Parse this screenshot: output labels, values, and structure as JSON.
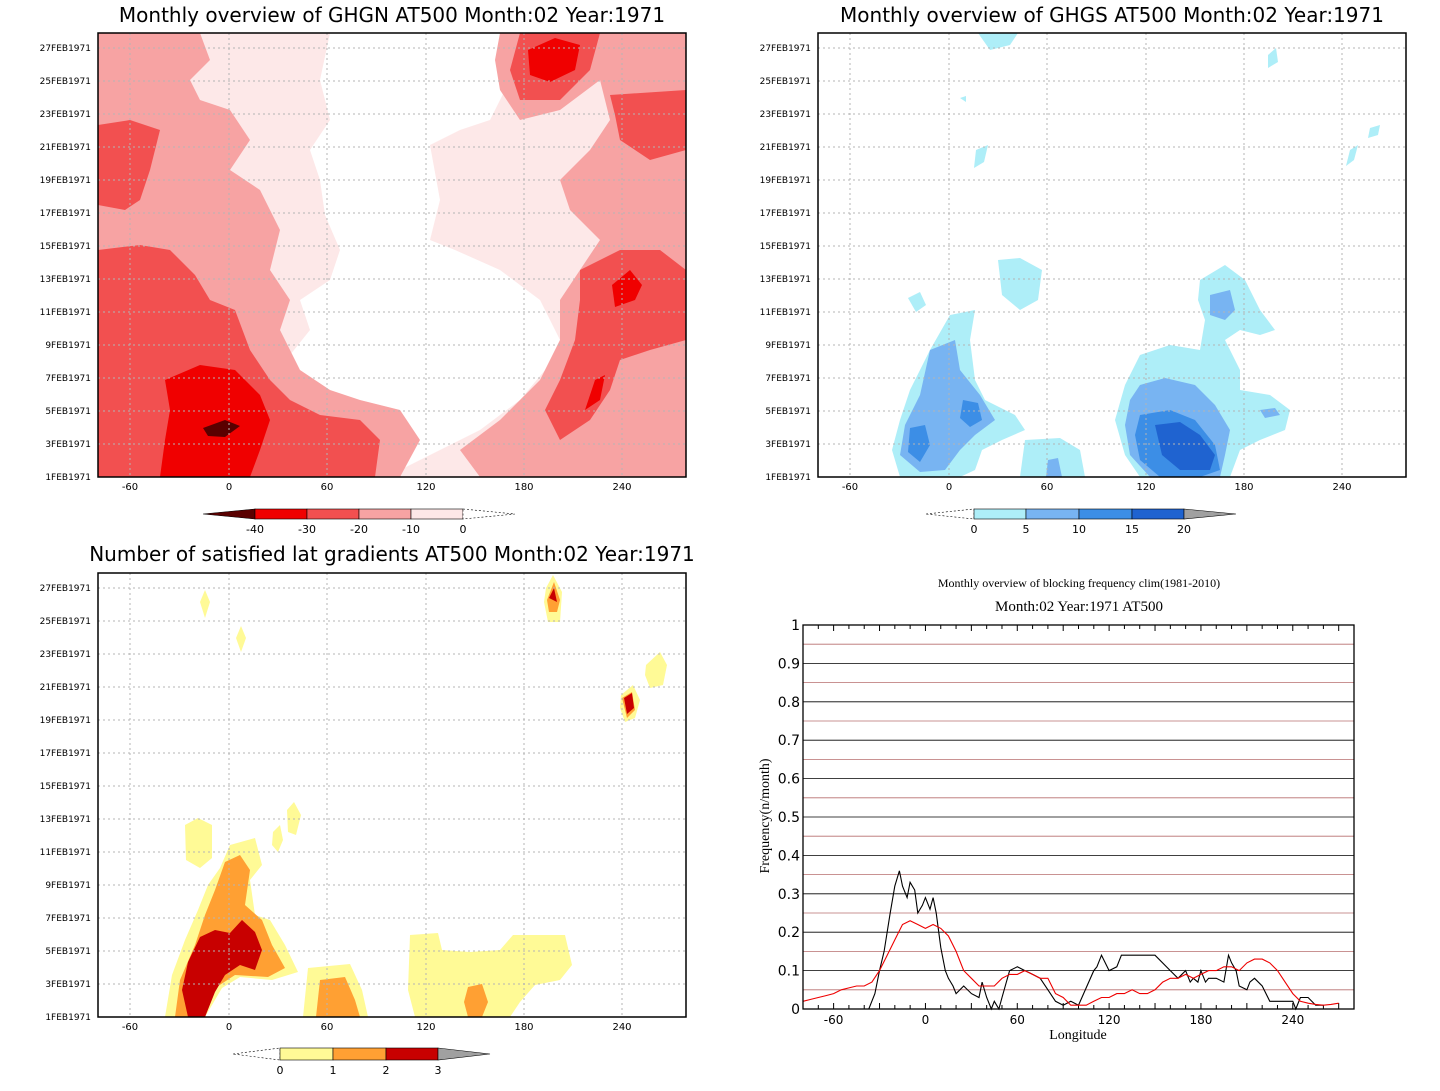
{
  "chart_data": [
    {
      "type": "heatmap",
      "title": "Monthly overview of GHGN AT500 Month:02 Year:1971",
      "x_ticks": [
        "-60",
        "0",
        "60",
        "120",
        "180",
        "240"
      ],
      "y_ticks": [
        "1FEB1971",
        "3FEB1971",
        "5FEB1971",
        "7FEB1971",
        "9FEB1971",
        "11FEB1971",
        "13FEB1971",
        "15FEB1971",
        "17FEB1971",
        "19FEB1971",
        "21FEB1971",
        "23FEB1971",
        "25FEB1971",
        "27FEB1971"
      ],
      "xlim": [
        -80,
        280
      ],
      "ylim": [
        1,
        28
      ],
      "grid": true,
      "colorbar": {
        "labels": [
          "-40",
          "-30",
          "-20",
          "-10",
          "0"
        ],
        "colors": [
          "#5a0000",
          "#f00000",
          "#f25050",
          "#f7a3a3",
          "#fde8e8",
          "#ffffff"
        ],
        "extend": "both"
      }
    },
    {
      "type": "heatmap",
      "title": "Monthly overview of GHGS AT500 Month:02 Year:1971",
      "x_ticks": [
        "-60",
        "0",
        "60",
        "120",
        "180",
        "240"
      ],
      "y_ticks": [
        "1FEB1971",
        "3FEB1971",
        "5FEB1971",
        "7FEB1971",
        "9FEB1971",
        "11FEB1971",
        "13FEB1971",
        "15FEB1971",
        "17FEB1971",
        "19FEB1971",
        "21FEB1971",
        "23FEB1971",
        "25FEB1971",
        "27FEB1971"
      ],
      "xlim": [
        -80,
        280
      ],
      "ylim": [
        1,
        28
      ],
      "grid": true,
      "colorbar": {
        "labels": [
          "0",
          "5",
          "10",
          "15",
          "20"
        ],
        "colors": [
          "#ffffff",
          "#aeeef8",
          "#78b4f2",
          "#3c8ee6",
          "#1f63d0",
          "#a0a0a0"
        ],
        "extend": "both"
      }
    },
    {
      "type": "heatmap",
      "title": "Number of satisfied lat gradients AT500 Month:02 Year:1971",
      "x_ticks": [
        "-60",
        "0",
        "60",
        "120",
        "180",
        "240"
      ],
      "y_ticks": [
        "1FEB1971",
        "3FEB1971",
        "5FEB1971",
        "7FEB1971",
        "9FEB1971",
        "11FEB1971",
        "13FEB1971",
        "15FEB1971",
        "17FEB1971",
        "19FEB1971",
        "21FEB1971",
        "23FEB1971",
        "25FEB1971",
        "27FEB1971"
      ],
      "xlim": [
        -80,
        280
      ],
      "ylim": [
        1,
        28
      ],
      "grid": true,
      "colorbar": {
        "labels": [
          "0",
          "1",
          "2",
          "3"
        ],
        "colors": [
          "#ffffff",
          "#fffa96",
          "#ffa033",
          "#c80000",
          "#a0a0a0"
        ],
        "extend": "both"
      }
    },
    {
      "type": "line",
      "title": "Monthly overview of blocking frequency clim(1981-2010)",
      "subtitle": "Month:02 Year:1971  AT500",
      "xlabel": "Longitude",
      "ylabel": "Frequency(n/month)",
      "xlim": [
        -80,
        280
      ],
      "ylim": [
        0,
        1
      ],
      "x_ticks": [
        "-60",
        "0",
        "60",
        "120",
        "180",
        "240"
      ],
      "y_ticks": [
        "0",
        "0.1",
        "0.2",
        "0.3",
        "0.4",
        "0.5",
        "0.6",
        "0.7",
        "0.8",
        "0.9",
        "1"
      ],
      "grid": true,
      "series": [
        {
          "color": "#000000",
          "x": [
            -40,
            -37,
            -33,
            -30,
            -27,
            -23,
            -20,
            -17,
            -15,
            -12,
            -10,
            -7,
            -5,
            -2,
            0,
            3,
            5,
            7,
            10,
            13,
            15,
            18,
            20,
            25,
            30,
            35,
            37,
            40,
            43,
            45,
            48,
            50,
            55,
            60,
            65,
            70,
            75,
            80,
            85,
            90,
            95,
            100,
            110,
            112,
            115,
            120,
            125,
            128,
            130,
            135,
            140,
            145,
            150,
            160,
            165,
            170,
            173,
            175,
            178,
            180,
            183,
            185,
            190,
            195,
            198,
            200,
            203,
            205,
            210,
            212,
            215,
            220,
            225,
            230,
            235,
            240,
            242,
            245,
            248,
            250,
            255,
            258,
            260
          ],
          "y": [
            0,
            0,
            0.04,
            0.1,
            0.15,
            0.25,
            0.32,
            0.36,
            0.32,
            0.29,
            0.33,
            0.31,
            0.25,
            0.27,
            0.29,
            0.26,
            0.29,
            0.25,
            0.16,
            0.1,
            0.08,
            0.06,
            0.04,
            0.06,
            0.04,
            0.03,
            0.07,
            0.03,
            0,
            0.02,
            0,
            0.03,
            0.1,
            0.11,
            0.1,
            0.09,
            0.08,
            0.05,
            0.02,
            0.01,
            0.02,
            0.01,
            0.1,
            0.11,
            0.14,
            0.1,
            0.11,
            0.14,
            0.14,
            0.14,
            0.14,
            0.14,
            0.14,
            0.1,
            0.08,
            0.1,
            0.07,
            0.08,
            0.07,
            0.1,
            0.07,
            0.08,
            0.08,
            0.07,
            0.14,
            0.12,
            0.1,
            0.06,
            0.05,
            0.07,
            0.08,
            0.06,
            0.02,
            0.02,
            0.02,
            0.02,
            0,
            0.03,
            0.03,
            0.03,
            0.01,
            0.01,
            0.01
          ]
        },
        {
          "color": "#ee0000",
          "x": [
            -80,
            -75,
            -70,
            -65,
            -60,
            -55,
            -50,
            -45,
            -40,
            -35,
            -30,
            -25,
            -20,
            -15,
            -10,
            -5,
            0,
            5,
            10,
            15,
            20,
            25,
            30,
            35,
            40,
            45,
            50,
            55,
            60,
            65,
            70,
            75,
            80,
            85,
            90,
            95,
            100,
            105,
            110,
            115,
            120,
            125,
            130,
            135,
            140,
            145,
            150,
            155,
            160,
            165,
            170,
            175,
            180,
            185,
            190,
            195,
            200,
            205,
            210,
            215,
            220,
            225,
            230,
            235,
            240,
            245,
            250,
            255,
            260,
            265,
            270
          ],
          "y": [
            0.02,
            0.025,
            0.03,
            0.035,
            0.04,
            0.05,
            0.055,
            0.06,
            0.06,
            0.07,
            0.1,
            0.14,
            0.18,
            0.22,
            0.23,
            0.22,
            0.21,
            0.22,
            0.21,
            0.19,
            0.15,
            0.1,
            0.08,
            0.06,
            0.06,
            0.06,
            0.08,
            0.09,
            0.09,
            0.1,
            0.09,
            0.08,
            0.08,
            0.04,
            0.03,
            0.01,
            0.01,
            0.01,
            0.02,
            0.03,
            0.03,
            0.04,
            0.04,
            0.05,
            0.04,
            0.04,
            0.05,
            0.07,
            0.08,
            0.08,
            0.09,
            0.08,
            0.09,
            0.1,
            0.1,
            0.11,
            0.11,
            0.1,
            0.12,
            0.13,
            0.13,
            0.12,
            0.1,
            0.07,
            0.04,
            0.02,
            0.015,
            0.012,
            0.01,
            0.012,
            0.015
          ]
        }
      ]
    }
  ]
}
